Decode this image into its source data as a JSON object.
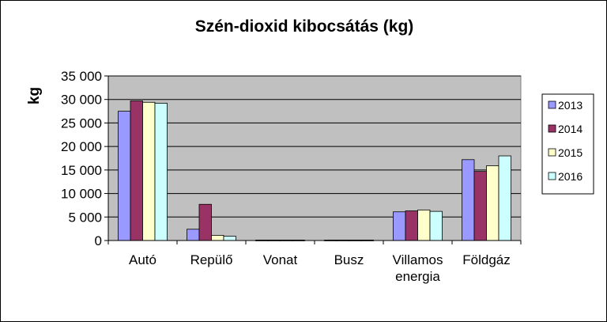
{
  "chart_data": {
    "type": "bar",
    "title": "Szén-dioxid kibocsátás (kg)",
    "xlabel": "",
    "ylabel": "kg",
    "ylim": [
      0,
      35000
    ],
    "yticks": [
      "0",
      "5 000",
      "10 000",
      "15 000",
      "20 000",
      "25 000",
      "30 000",
      "35 000"
    ],
    "ytick_values": [
      0,
      5000,
      10000,
      15000,
      20000,
      25000,
      30000,
      35000
    ],
    "categories": [
      [
        "Autó"
      ],
      [
        "Repülő"
      ],
      [
        "Vonat"
      ],
      [
        "Busz"
      ],
      [
        "Villamos",
        "energia"
      ],
      [
        "Földgáz"
      ]
    ],
    "series": [
      {
        "name": "2013",
        "color": "#9999ff",
        "values": [
          27500,
          2400,
          100,
          100,
          6100,
          17200
        ]
      },
      {
        "name": "2014",
        "color": "#993366",
        "values": [
          29700,
          7700,
          100,
          100,
          6300,
          14700
        ]
      },
      {
        "name": "2015",
        "color": "#ffffcc",
        "values": [
          29400,
          1100,
          100,
          100,
          6500,
          15900
        ]
      },
      {
        "name": "2016",
        "color": "#ccffff",
        "values": [
          29200,
          900,
          100,
          100,
          6200,
          18000
        ]
      }
    ],
    "grid": true,
    "plot_background": "#c0c0c0",
    "legend_position": "right"
  }
}
